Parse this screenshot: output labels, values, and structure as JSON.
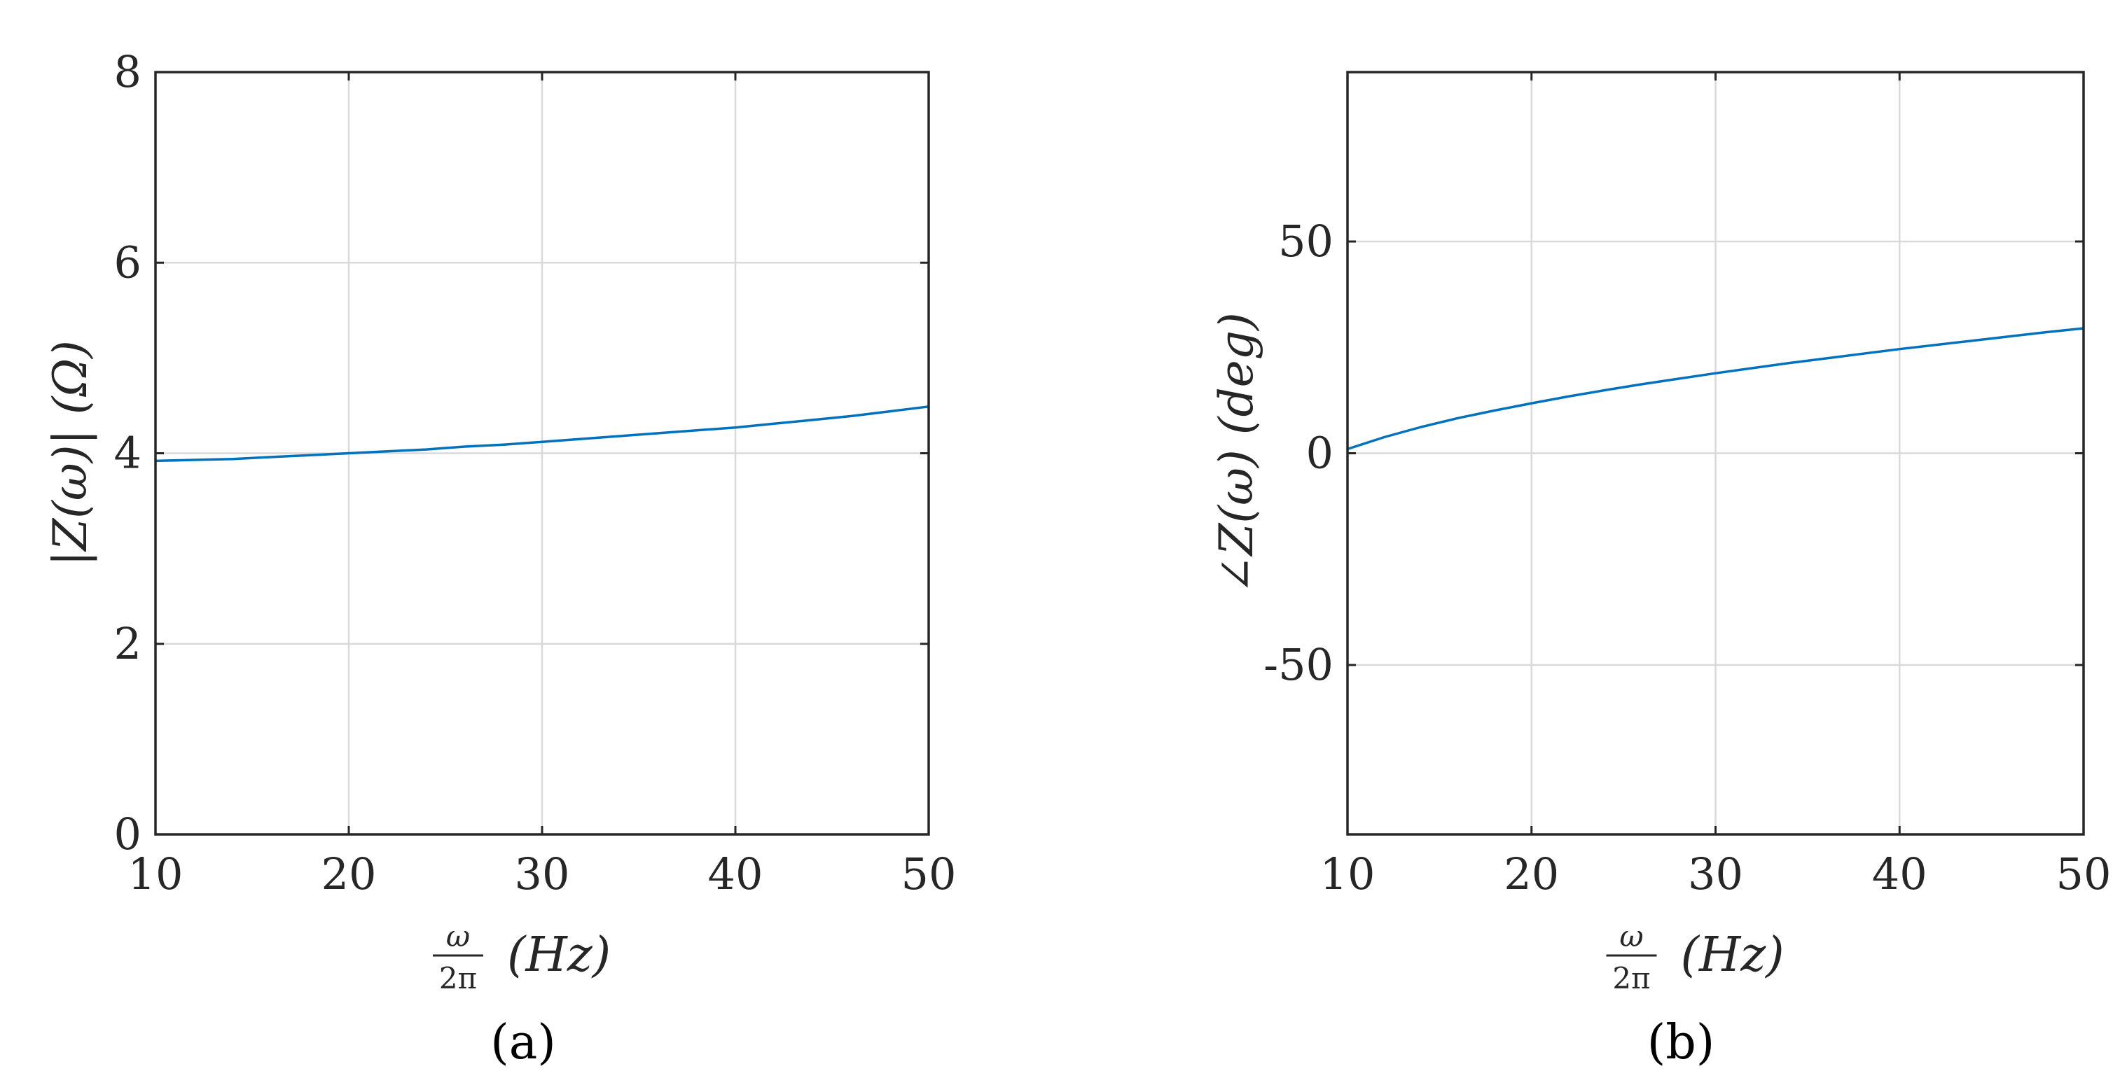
{
  "chart_data": [
    {
      "type": "line",
      "panel_label": "(a)",
      "xlabel": {
        "num": "ω",
        "den": "2π",
        "unit": "(Hz)"
      },
      "ylabel": "|Z(ω)|  (Ω)",
      "xlim": [
        10,
        50
      ],
      "ylim": [
        0,
        8
      ],
      "xticks": [
        10,
        20,
        30,
        40,
        50
      ],
      "yticks": [
        0,
        2,
        4,
        6,
        8
      ],
      "grid": true,
      "color": "#0072BD",
      "series": [
        {
          "x": [
            10,
            12,
            14,
            16,
            18,
            20,
            22,
            24,
            26,
            28,
            30,
            32,
            34,
            36,
            38,
            40,
            42,
            44,
            46,
            48,
            50
          ],
          "values": [
            3.92,
            3.93,
            3.94,
            3.96,
            3.98,
            4.0,
            4.02,
            4.04,
            4.07,
            4.09,
            4.12,
            4.15,
            4.18,
            4.21,
            4.24,
            4.27,
            4.31,
            4.35,
            4.39,
            4.44,
            4.49
          ]
        }
      ]
    },
    {
      "type": "line",
      "panel_label": "(b)",
      "xlabel": {
        "num": "ω",
        "den": "2π",
        "unit": "(Hz)"
      },
      "ylabel": "∠Z(ω)  (deg)",
      "xlim": [
        10,
        50
      ],
      "ylim": [
        -90,
        90
      ],
      "xticks": [
        10,
        20,
        30,
        40,
        50
      ],
      "yticks": [
        -50,
        0,
        50
      ],
      "grid": true,
      "color": "#0072BD",
      "series": [
        {
          "x": [
            10,
            12,
            14,
            16,
            18,
            20,
            22,
            24,
            26,
            28,
            30,
            32,
            34,
            36,
            38,
            40,
            42,
            44,
            46,
            48,
            50
          ],
          "values": [
            1.0,
            3.8,
            6.2,
            8.3,
            10.1,
            11.8,
            13.4,
            14.9,
            16.3,
            17.6,
            18.9,
            20.1,
            21.3,
            22.4,
            23.5,
            24.6,
            25.6,
            26.6,
            27.6,
            28.6,
            29.5
          ]
        }
      ]
    }
  ]
}
